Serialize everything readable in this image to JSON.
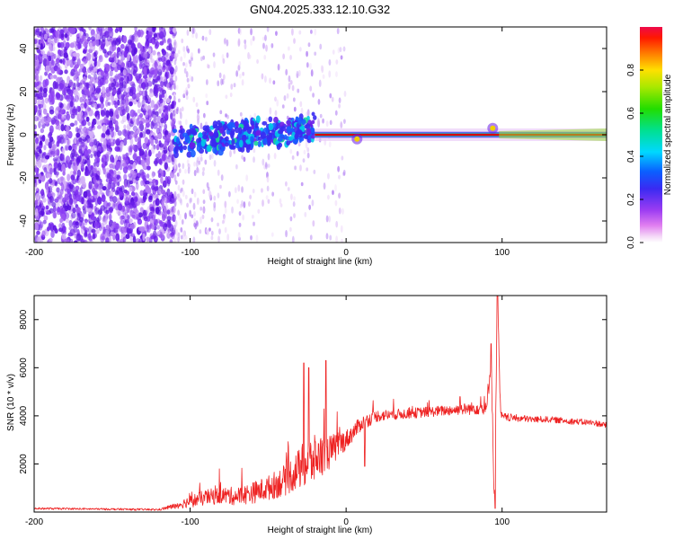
{
  "title": "GN04.2025.333.12.10.G32",
  "colors": {
    "snr_line": "#ee2222",
    "background": "#ffffff",
    "axis": "#000000",
    "ridge": "#d80000",
    "noise": "#6a1ee8"
  },
  "chart_data": [
    {
      "type": "heatmap",
      "name": "spectrogram",
      "xlabel": "Height of straight line (km)",
      "ylabel": "Frequency (Hz)",
      "xlim": [
        -200,
        167
      ],
      "ylim": [
        -50,
        50
      ],
      "xticks": [
        -200,
        -100,
        0,
        100
      ],
      "yticks": [
        -40,
        -20,
        0,
        20,
        40
      ],
      "colorbar": {
        "label": "Normalized spectral amplitude",
        "range": [
          0,
          1
        ],
        "ticks": [
          0.0,
          0.2,
          0.4,
          0.6,
          0.8
        ],
        "colormap": "rainbow (white-magenta-purple-blue-cyan-green-yellow-red)"
      },
      "features": [
        {
          "description": "broadband noise (low amplitude)",
          "x_range": [
            -200,
            -110
          ],
          "amplitude": 0.1
        },
        {
          "description": "emerging tone",
          "x_range": [
            -110,
            -20
          ],
          "freq_center_hz": [
            -3,
            3
          ],
          "amplitude": 0.4
        },
        {
          "description": "strong carrier near 0 Hz",
          "x_range": [
            -20,
            167
          ],
          "freq_hz": 0,
          "amplitude": 0.95
        },
        {
          "description": "frequency wobble",
          "x": 7,
          "freq_hz": -2
        },
        {
          "description": "frequency wobble",
          "x": 94,
          "freq_hz": 3
        }
      ]
    },
    {
      "type": "line",
      "name": "snr",
      "xlabel": "Height of straight line (km)",
      "ylabel": "SNR (10 * v/v)",
      "xlim": [
        -200,
        167
      ],
      "ylim": [
        0,
        9000
      ],
      "xticks": [
        -200,
        -100,
        0,
        100
      ],
      "yticks": [
        2000,
        4000,
        6000,
        8000
      ],
      "series": [
        {
          "name": "SNR",
          "x": [
            -200,
            -150,
            -120,
            -110,
            -100,
            -90,
            -80,
            -70,
            -60,
            -50,
            -40,
            -30,
            -25,
            -20,
            -15,
            -10,
            -5,
            0,
            10,
            20,
            30,
            40,
            50,
            60,
            70,
            80,
            85,
            90,
            93,
            95,
            97,
            99,
            100,
            110,
            120,
            130,
            140,
            150,
            160,
            167
          ],
          "values": [
            150,
            120,
            100,
            250,
            450,
            600,
            700,
            650,
            800,
            1000,
            1300,
            1800,
            2000,
            2200,
            2400,
            2500,
            2800,
            3000,
            3700,
            4000,
            4050,
            4100,
            4150,
            4200,
            4250,
            4300,
            4350,
            4200,
            6500,
            300,
            9000,
            4100,
            3950,
            3900,
            3850,
            3850,
            3800,
            3750,
            3700,
            3600
          ],
          "noise_amplitude": [
            40,
            40,
            40,
            120,
            260,
            330,
            360,
            380,
            450,
            520,
            650,
            850,
            1100,
            1000,
            850,
            700,
            550,
            420,
            300,
            250,
            220,
            220,
            220,
            220,
            230,
            260,
            300,
            350,
            600,
            200,
            500,
            250,
            180,
            150,
            140,
            130,
            130,
            130,
            130,
            130
          ],
          "spikes": [
            {
              "x": -27,
              "value": 6200
            },
            {
              "x": -24,
              "value": 6000
            },
            {
              "x": -13,
              "value": 6300
            },
            {
              "x": 12,
              "value": 1900
            },
            {
              "x": 73,
              "value": 4800
            },
            {
              "x": 93,
              "value": 7000
            },
            {
              "x": 95.5,
              "value": 150
            },
            {
              "x": 97,
              "value": 9000
            }
          ]
        }
      ]
    }
  ]
}
